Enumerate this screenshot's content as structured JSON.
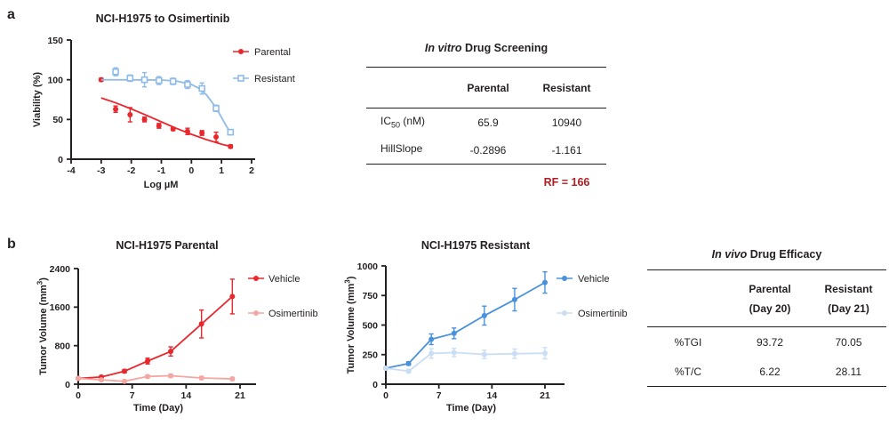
{
  "panels": {
    "a": {
      "label": "a"
    },
    "b": {
      "label": "b"
    }
  },
  "colors": {
    "text": "#231f20",
    "parental_red": "#e8282d",
    "resistant_blue": "#8fbbe9",
    "vehicle_red": "#e8282d",
    "osimertinib_pink": "#f4a6a3",
    "vehicle_blue": "#4a91dc",
    "osimertinib_lightblue": "#c9def4",
    "rf_text": "#b01e23"
  },
  "chart_data": [
    {
      "id": "viability",
      "type": "scatter",
      "title": "NCI-H1975 to Osimertinib",
      "xlabel": "Log µM",
      "ylabel": "Viability (%)",
      "xlim": [
        -4,
        2
      ],
      "xticks": [
        -4,
        -3,
        -2,
        -1,
        0,
        1,
        2
      ],
      "ylim": [
        0,
        150
      ],
      "yticks": [
        0,
        50,
        100,
        150
      ],
      "grid": false,
      "legend_position": "right",
      "series": [
        {
          "name": "Parental",
          "color": "#e8282d",
          "marker": "circle-filled",
          "connect": false,
          "x": [
            -3,
            -2.52,
            -2.04,
            -1.56,
            -1.08,
            -0.61,
            -0.13,
            0.35,
            0.82,
            1.3
          ],
          "y": [
            100,
            63,
            56,
            50,
            42,
            38,
            35,
            33,
            28,
            16
          ],
          "err": [
            2,
            4,
            9,
            3,
            3,
            2,
            4,
            3,
            6,
            2
          ],
          "fit_x": [
            -3,
            -2.5,
            -2,
            -1.5,
            -1,
            -0.5,
            0,
            0.5,
            1,
            1.35
          ],
          "fit_y": [
            77.1,
            70.7,
            63.3,
            55.3,
            47.0,
            38.8,
            31.3,
            24.6,
            18.9,
            15.6
          ]
        },
        {
          "name": "Resistant",
          "color": "#8fbbe9",
          "marker": "square-open",
          "connect": false,
          "x": [
            -2.52,
            -2.04,
            -1.56,
            -1.08,
            -0.61,
            -0.13,
            0.35,
            0.82,
            1.3
          ],
          "y": [
            110,
            102,
            100,
            99,
            98,
            94,
            89,
            64,
            34
          ],
          "err": [
            5,
            4,
            9,
            5,
            4,
            5,
            7,
            4,
            3
          ],
          "fit_x": [
            -3,
            -2,
            -1,
            -0.5,
            0,
            0.25,
            0.5,
            0.75,
            0.9,
            1,
            1.1,
            1.2,
            1.3
          ],
          "fit_y": [
            100,
            99.9,
            99.6,
            98.4,
            94.1,
            89.2,
            80.9,
            68.4,
            59.2,
            52.6,
            45.9,
            39.4,
            33.2
          ]
        }
      ]
    },
    {
      "id": "tumor_parental",
      "type": "line",
      "title": "NCI-H1975 Parental",
      "xlabel": "Time (Day)",
      "ylabel": "Tumor Volume (mm",
      "ylabel_sup": "3",
      "ylabel_end": ")",
      "xlim": [
        0,
        21
      ],
      "xticks": [
        0,
        7,
        14,
        21
      ],
      "ylim": [
        0,
        2400
      ],
      "yticks": [
        0,
        800,
        1600,
        2400
      ],
      "grid": false,
      "legend_position": "right",
      "series": [
        {
          "name": "Vehicle",
          "color": "#e8282d",
          "marker": "circle-filled",
          "connect": true,
          "x": [
            0,
            3,
            6,
            9,
            12,
            16,
            20
          ],
          "y": [
            120,
            150,
            270,
            480,
            680,
            1250,
            1820
          ],
          "err": [
            15,
            25,
            35,
            60,
            95,
            290,
            360
          ]
        },
        {
          "name": "Osimertinib",
          "color": "#f4a6a3",
          "marker": "circle-filled",
          "connect": true,
          "x": [
            0,
            3,
            6,
            9,
            12,
            16,
            20
          ],
          "y": [
            120,
            90,
            60,
            160,
            175,
            130,
            110
          ],
          "err": [
            15,
            20,
            25,
            30,
            35,
            30,
            30
          ]
        }
      ]
    },
    {
      "id": "tumor_resistant",
      "type": "line",
      "title": "NCI-H1975 Resistant",
      "xlabel": "Time (Day)",
      "ylabel": "Tumor Volume (mm",
      "ylabel_sup": "3",
      "ylabel_end": ")",
      "xlim": [
        0,
        21
      ],
      "xticks": [
        0,
        7,
        14,
        21
      ],
      "ylim": [
        0,
        1000
      ],
      "yticks": [
        0,
        250,
        500,
        750,
        1000
      ],
      "grid": false,
      "legend_position": "right",
      "series": [
        {
          "name": "Vehicle",
          "color": "#4a91dc",
          "marker": "circle-filled",
          "connect": true,
          "x": [
            0,
            3,
            6,
            9,
            13,
            17,
            21
          ],
          "y": [
            135,
            175,
            380,
            430,
            580,
            715,
            860
          ],
          "err": [
            10,
            15,
            45,
            45,
            80,
            95,
            90
          ]
        },
        {
          "name": "Osimertinib",
          "color": "#c9def4",
          "marker": "circle-filled",
          "connect": true,
          "x": [
            0,
            3,
            6,
            9,
            13,
            17,
            21
          ],
          "y": [
            135,
            110,
            260,
            268,
            252,
            258,
            262
          ],
          "err": [
            10,
            15,
            40,
            35,
            35,
            40,
            48
          ]
        }
      ]
    }
  ],
  "tables": {
    "in_vitro": {
      "title_italic": "In vitro",
      "title_rest": " Drug Screening",
      "col_headers": [
        "Parental",
        "Resistant"
      ],
      "rows": [
        {
          "label_main": "IC",
          "label_sub": "50",
          "label_rest": " (nM)",
          "values": [
            "65.9",
            "10940"
          ]
        },
        {
          "label_main": "HillSlope",
          "label_sub": "",
          "label_rest": "",
          "values": [
            "-0.2896",
            "-1.161"
          ]
        }
      ],
      "footnote": "RF = 166"
    },
    "in_vivo": {
      "title_italic": "In vivo",
      "title_rest": " Drug Efficacy",
      "col_headers": [
        {
          "line1": "Parental",
          "line2": "(Day 20)"
        },
        {
          "line1": "Resistant",
          "line2": "(Day 21)"
        }
      ],
      "rows": [
        {
          "label": "%TGI",
          "values": [
            "93.72",
            "70.05"
          ]
        },
        {
          "label": "%T/C",
          "values": [
            "6.22",
            "28.11"
          ]
        }
      ]
    }
  }
}
